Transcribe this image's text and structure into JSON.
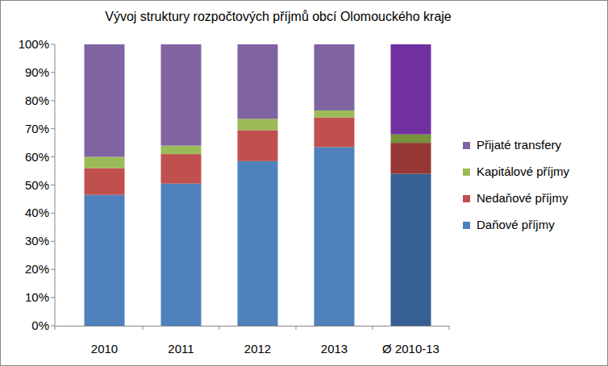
{
  "chart_data": {
    "type": "bar",
    "title": "Vývoj struktury rozpočtových příjmů obcí Olomouckého kraje",
    "categories": [
      "2010",
      "2011",
      "2012",
      "2013",
      "Ø 2010-13"
    ],
    "series": [
      {
        "name": "Daňové příjmy",
        "color": "#4f81bd",
        "colors": [
          "#4f81bd",
          "#4f81bd",
          "#4f81bd",
          "#4f81bd",
          "#376092"
        ],
        "values": [
          46.5,
          50.5,
          58.5,
          63.5,
          54
        ]
      },
      {
        "name": "Nedaňové příjmy",
        "color": "#c0504d",
        "colors": [
          "#c0504d",
          "#c0504d",
          "#c0504d",
          "#c0504d",
          "#953735"
        ],
        "values": [
          9.5,
          10.5,
          11,
          10.5,
          11
        ]
      },
      {
        "name": "Kapitálové příjmy",
        "color": "#9bbb59",
        "colors": [
          "#9bbb59",
          "#9bbb59",
          "#9bbb59",
          "#9bbb59",
          "#77933c"
        ],
        "values": [
          4,
          3,
          4,
          2.5,
          3
        ]
      },
      {
        "name": "Přijaté transfery",
        "color": "#8064a2",
        "colors": [
          "#8064a2",
          "#8064a2",
          "#8064a2",
          "#8064a2",
          "#7030a0"
        ],
        "values": [
          40,
          36,
          26.5,
          23.5,
          32
        ]
      }
    ],
    "stacked": true,
    "ylim": [
      0,
      100
    ],
    "yticks": [
      {
        "value": 0,
        "label": "0%"
      },
      {
        "value": 10,
        "label": "10%"
      },
      {
        "value": 20,
        "label": "20%"
      },
      {
        "value": 30,
        "label": "30%"
      },
      {
        "value": 40,
        "label": "40%"
      },
      {
        "value": 50,
        "label": "50%"
      },
      {
        "value": 60,
        "label": "60%"
      },
      {
        "value": 70,
        "label": "70%"
      },
      {
        "value": 80,
        "label": "80%"
      },
      {
        "value": 90,
        "label": "90%"
      },
      {
        "value": 100,
        "label": "100%"
      }
    ],
    "grid": false,
    "legend": "right"
  }
}
